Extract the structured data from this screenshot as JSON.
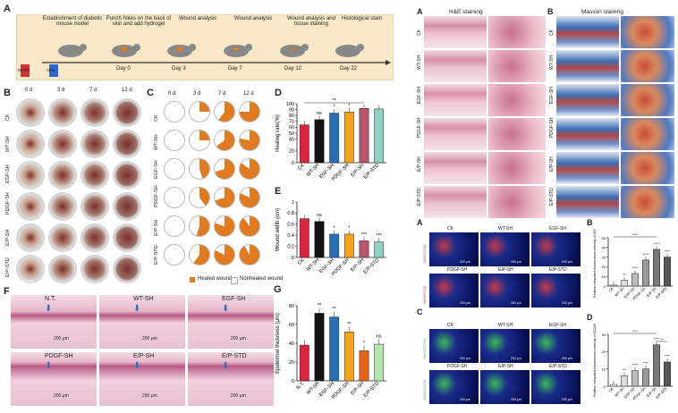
{
  "panelA_left": {
    "letter": "A",
    "steps": [
      "Establishment of diabetic mouse model",
      "Punch holes on the back of skin and add hydrogel",
      "Wound analysis",
      "Wound analysis",
      "Wound analysis and tissue staining",
      "Histological stain"
    ],
    "days": [
      "Day 0",
      "Day 3",
      "Day 7",
      "Day 12",
      "Day 22"
    ],
    "before": "Before",
    "after": "After"
  },
  "panelB": {
    "letter": "B",
    "cols": [
      "0 d",
      "3 d",
      "7 d",
      "12 d"
    ],
    "rows": [
      "CK",
      "WT-SH",
      "EGF-SH",
      "PDGF-SH",
      "E/P-SH",
      "E/P-STD"
    ],
    "scale": "10 mm"
  },
  "panelC": {
    "letter": "C",
    "cols": [
      "0 d",
      "3 d",
      "7 d",
      "12 d"
    ],
    "rows": [
      "CK",
      "WT-SH",
      "EGF-SH",
      "PDGF-SH",
      "E/P-SH",
      "E/P-STD"
    ],
    "legend_healed": "Healed wound",
    "legend_nonhealed": "Nonhealed wound",
    "healed_fraction": [
      [
        0,
        0.25,
        0.6,
        0.75
      ],
      [
        0,
        0.25,
        0.65,
        0.78
      ],
      [
        0,
        0.45,
        0.7,
        0.85
      ],
      [
        0,
        0.4,
        0.7,
        0.82
      ],
      [
        0,
        0.55,
        0.8,
        0.9
      ],
      [
        0,
        0.6,
        0.82,
        0.92
      ]
    ]
  },
  "panelD": {
    "letter": "D"
  },
  "panelE": {
    "letter": "E"
  },
  "panelF": {
    "letter": "F",
    "labels": [
      "N.T.",
      "WT-SH",
      "EGF-SH",
      "PDGF-SH",
      "E/P-SH",
      "E/P-STD"
    ],
    "scale": "200 μm"
  },
  "panelG": {
    "letter": "G"
  },
  "he": {
    "letterA": "A",
    "title": "H&E staining",
    "letterB": "B",
    "title2": "Masson staining",
    "rows": [
      "CK",
      "WT-SH",
      "EGF-SH",
      "PDGF-SH",
      "E/P-SH",
      "E/P-STD"
    ]
  },
  "fluor": {
    "letterA": "A",
    "letterB": "B",
    "letterC": "C",
    "letterD": "D",
    "top_labels_1": [
      "CK",
      "WT-SH",
      "EGF-SH"
    ],
    "top_labels_2": [
      "PDGF-SH",
      "E/P-SH",
      "E/P-STD"
    ],
    "side1": "DAPI/CD31",
    "side2": "DAPI/CD206",
    "scale": "200 μm"
  },
  "chart_data": [
    {
      "type": "bar",
      "panel": "D",
      "categories": [
        "CK",
        "WT-SH",
        "EGF-SH",
        "PDGF-SH",
        "E/P-SH",
        "E/P-STD"
      ],
      "values": [
        64,
        73,
        84,
        86,
        92,
        91
      ],
      "ylabel": "Healing rate(%)",
      "ylim": [
        0,
        100
      ],
      "yticks": [
        0,
        20,
        40,
        50,
        60,
        70,
        80,
        90,
        100
      ],
      "sig": [
        "",
        "ns",
        "*",
        "*",
        "",
        ""
      ],
      "bracket": "**",
      "colors": [
        "#d7263d",
        "#111111",
        "#2a6fb5",
        "#f2a51c",
        "#b8566e",
        "#8fd1c2"
      ]
    },
    {
      "type": "bar",
      "panel": "E",
      "categories": [
        "CK",
        "WT-SH",
        "EGF-SH",
        "PDGF-SH",
        "E/P-SH",
        "E/P-STD"
      ],
      "values": [
        0.7,
        0.65,
        0.42,
        0.42,
        0.3,
        0.28
      ],
      "ylabel": "Wound width (cm)",
      "ylim": [
        0,
        1.0
      ],
      "yticks": [
        0.0,
        0.2,
        0.4,
        0.6,
        0.8,
        1.0
      ],
      "sig": [
        "",
        "ns",
        "*",
        "*",
        "***",
        "***"
      ],
      "colors": [
        "#d7263d",
        "#111111",
        "#2a6fb5",
        "#f2a51c",
        "#b8566e",
        "#8fd1c2"
      ]
    },
    {
      "type": "bar",
      "panel": "G",
      "categories": [
        "N.T.",
        "WT-SH",
        "EGF-SH",
        "PDGF-SH",
        "E/P-SH",
        "E/P-STD"
      ],
      "values": [
        38,
        72,
        68,
        52,
        32,
        39
      ],
      "ylabel": "Epidermal thickness (μm)",
      "ylim": [
        0,
        80
      ],
      "yticks": [
        0,
        20,
        40,
        60,
        80
      ],
      "sig": [
        "",
        "**",
        "**",
        "**",
        "*",
        "ns"
      ],
      "colors": [
        "#d7263d",
        "#111111",
        "#2a6fb5",
        "#f2a51c",
        "#e36414",
        "#b7e4b0"
      ]
    },
    {
      "type": "bar",
      "panel": "fluor-B",
      "categories": [
        "CK",
        "WT-SH",
        "EGF-SH",
        "PDGF-SH",
        "E/P-SH",
        "E/P-STD"
      ],
      "values": [
        1,
        6,
        13,
        27,
        38,
        30
      ],
      "ylabel": "Relative integrated fluorescence intensity of CD31",
      "ylim": [
        0,
        50
      ],
      "yticks": [
        0,
        10,
        20,
        30,
        40,
        50
      ],
      "sig": [
        "",
        "**",
        "****",
        "****",
        "****",
        "****"
      ],
      "bracket": "****",
      "colors": [
        "#ffffff",
        "#dddddd",
        "#bbbbbb",
        "#999999",
        "#777777",
        "#555555"
      ]
    },
    {
      "type": "bar",
      "panel": "fluor-D",
      "categories": [
        "CK",
        "WT-SH",
        "EGF-SH",
        "PDGF-SH",
        "E/P-SH",
        "E/P-STD"
      ],
      "values": [
        1,
        6,
        9,
        10,
        24,
        14
      ],
      "ylabel": "Relative integrated fluorescence intensity of CD206",
      "ylim": [
        0,
        30
      ],
      "yticks": [
        0,
        10,
        20,
        30
      ],
      "sig": [
        "",
        "***",
        "****",
        "****",
        "****",
        "****"
      ],
      "bracket": "****",
      "bracket2": "**",
      "colors": [
        "#ffffff",
        "#dddddd",
        "#bbbbbb",
        "#999999",
        "#777777",
        "#555555"
      ]
    }
  ]
}
